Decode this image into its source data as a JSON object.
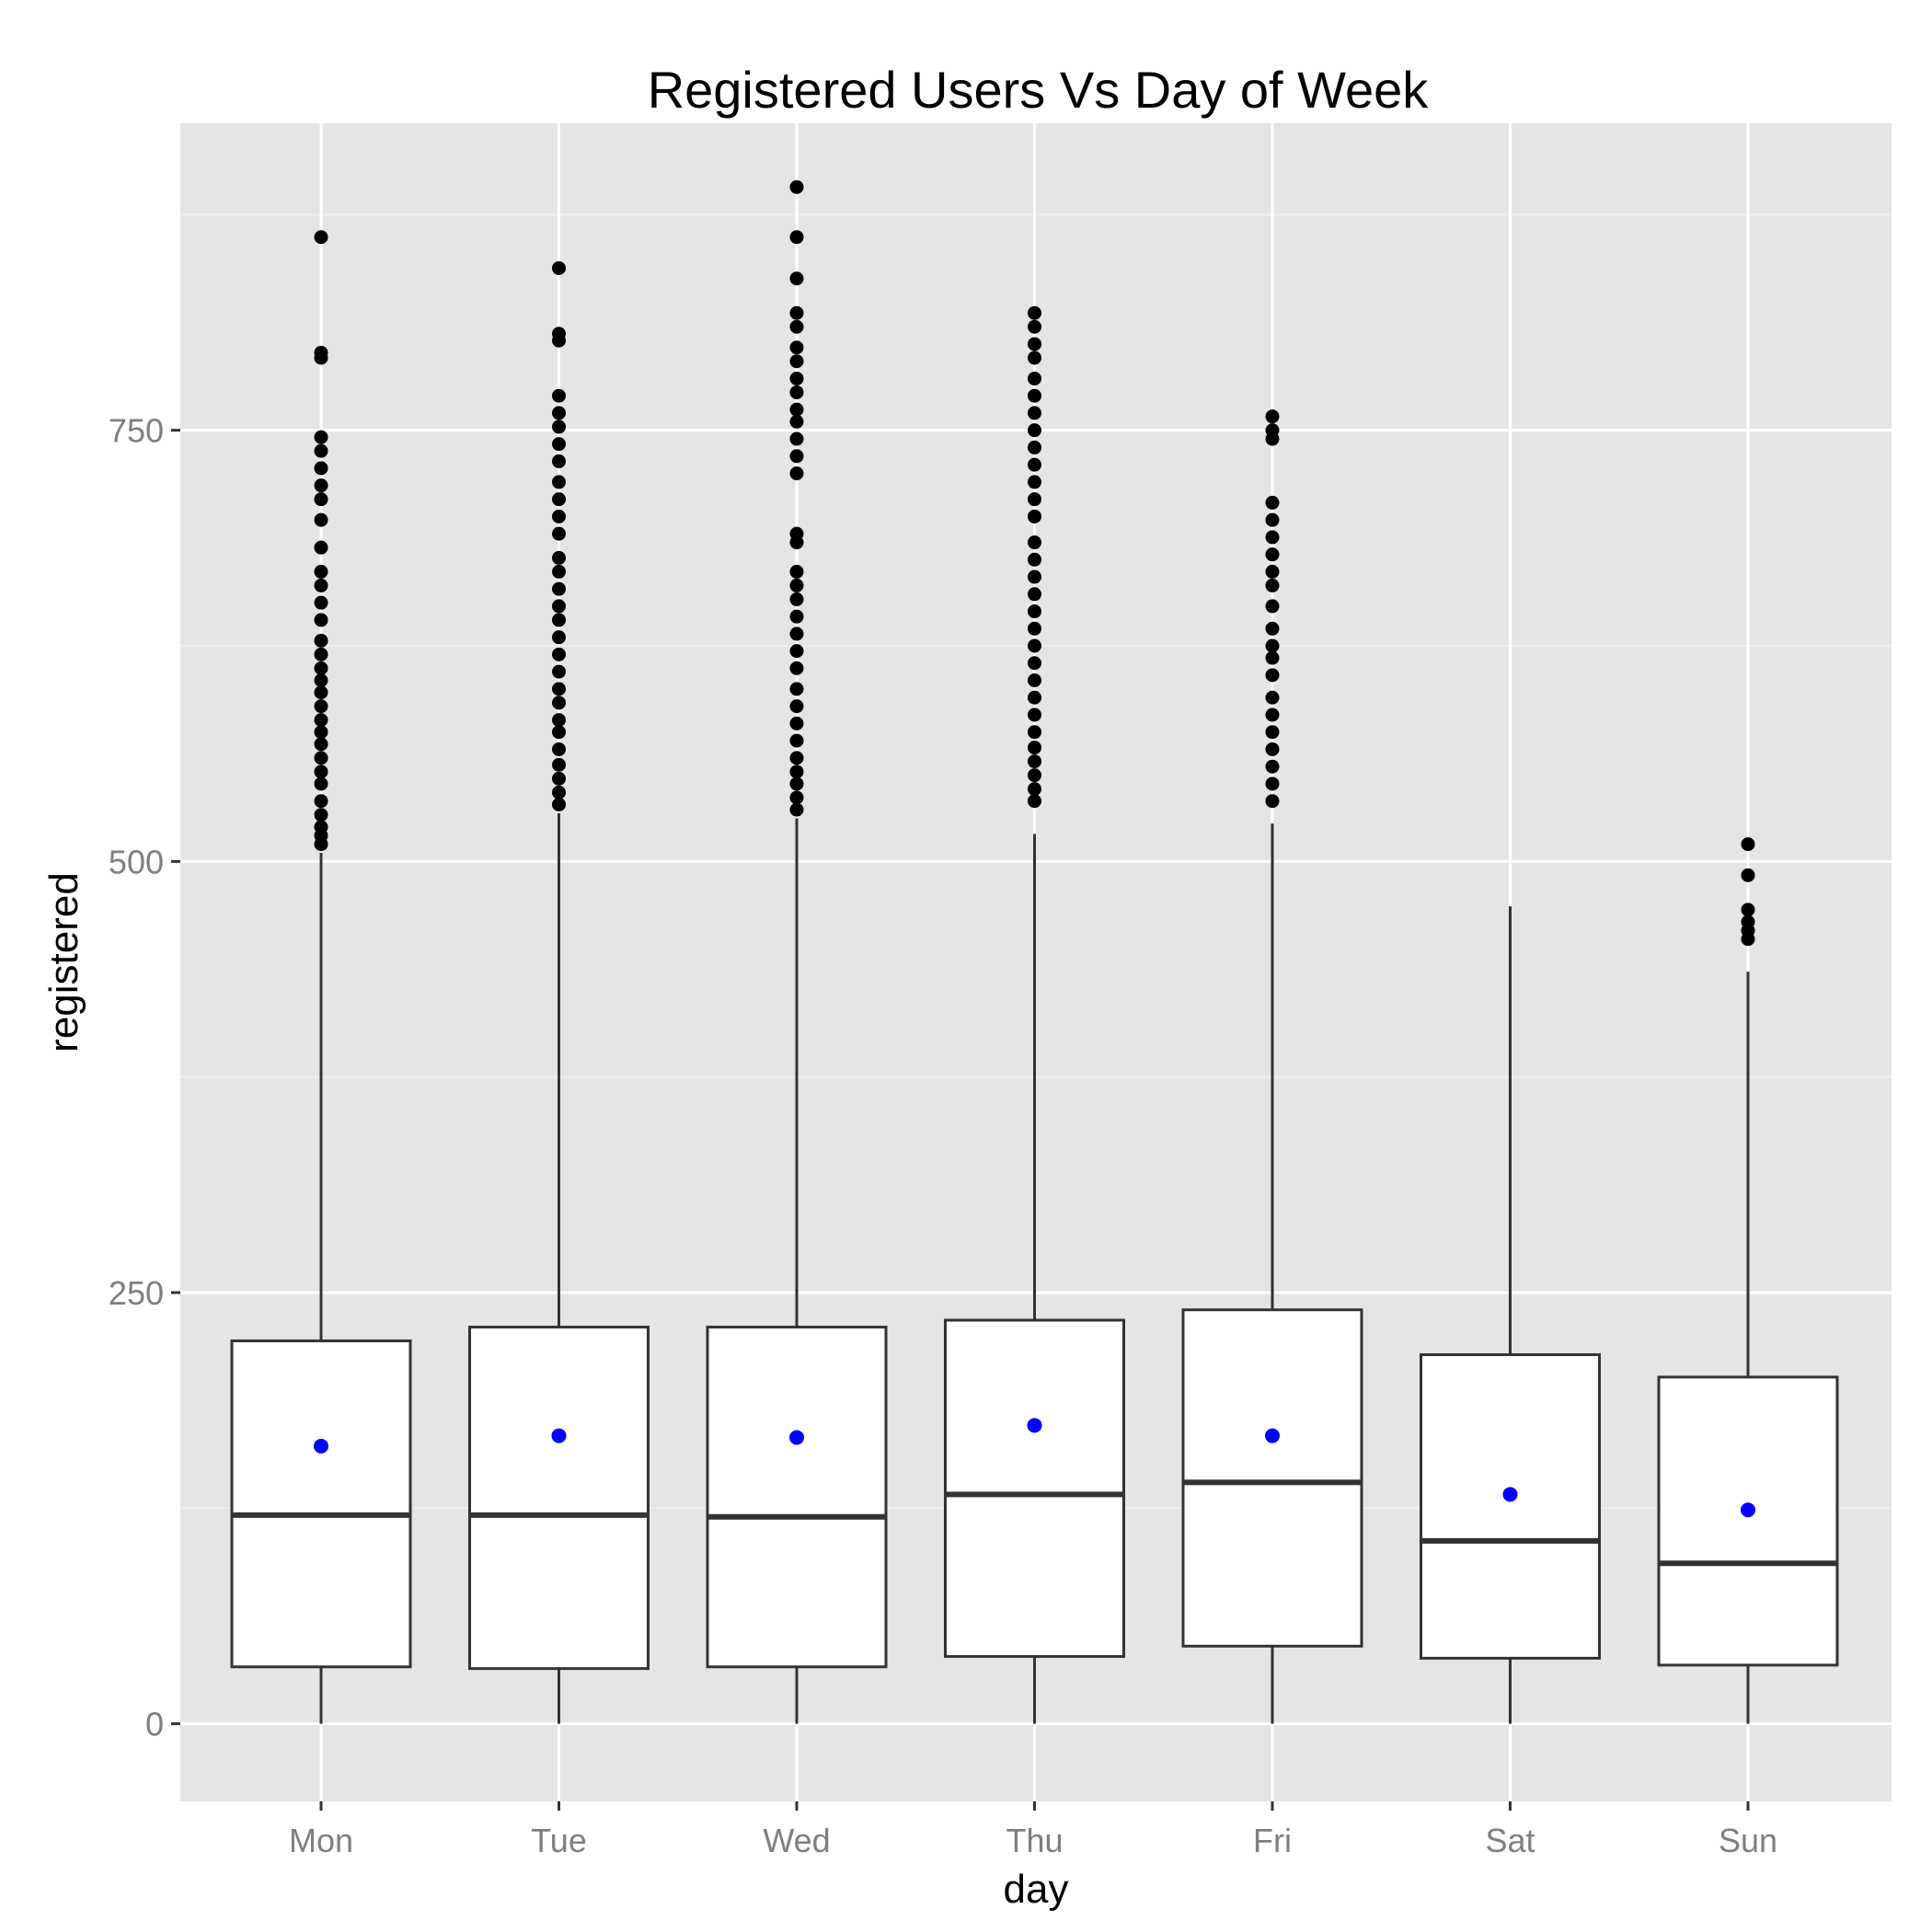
{
  "chart_data": {
    "type": "boxplot",
    "title": "Registered Users Vs Day of Week",
    "xlabel": "day",
    "ylabel": "registered",
    "categories": [
      "Mon",
      "Tue",
      "Wed",
      "Thu",
      "Fri",
      "Sat",
      "Sun"
    ],
    "ylim": [
      -45,
      928
    ],
    "yticks": [
      0,
      250,
      500,
      750
    ],
    "grid": true,
    "legend": "none",
    "colors": {
      "panel_background": "#e5e5e5",
      "grid_major": "#ffffff",
      "grid_minor": "#f2f2f2",
      "box_fill": "#ffffff",
      "box_stroke": "#333333",
      "outlier": "#000000",
      "mean_point": "#0000ff",
      "tick_label": "#7f7f7f"
    },
    "boxes": [
      {
        "day": "Mon",
        "whisker_low": 0,
        "q1": 33,
        "median": 121,
        "q3": 222,
        "whisker_high": 505,
        "mean": 161,
        "outliers": [
          510,
          515,
          520,
          527,
          535,
          545,
          552,
          560,
          568,
          575,
          582,
          590,
          598,
          605,
          612,
          620,
          628,
          640,
          650,
          660,
          668,
          682,
          698,
          710,
          718,
          728,
          738,
          746,
          792,
          795,
          862
        ]
      },
      {
        "day": "Tue",
        "whisker_low": 0,
        "q1": 32,
        "median": 121,
        "q3": 230,
        "whisker_high": 528,
        "mean": 167,
        "outliers": [
          533,
          540,
          548,
          556,
          565,
          575,
          582,
          592,
          600,
          610,
          620,
          630,
          640,
          648,
          658,
          668,
          676,
          690,
          700,
          710,
          720,
          732,
          742,
          752,
          760,
          770,
          802,
          806,
          844
        ]
      },
      {
        "day": "Wed",
        "whisker_low": 0,
        "q1": 33,
        "median": 120,
        "q3": 230,
        "whisker_high": 525,
        "mean": 166,
        "outliers": [
          530,
          537,
          545,
          552,
          560,
          570,
          580,
          590,
          600,
          612,
          622,
          632,
          642,
          652,
          660,
          668,
          685,
          690,
          725,
          735,
          745,
          755,
          762,
          772,
          780,
          790,
          798,
          810,
          818,
          838,
          862,
          891
        ]
      },
      {
        "day": "Thu",
        "whisker_low": 0,
        "q1": 39,
        "median": 133,
        "q3": 234,
        "whisker_high": 516,
        "mean": 173,
        "outliers": [
          535,
          542,
          550,
          558,
          566,
          575,
          585,
          595,
          605,
          615,
          625,
          635,
          645,
          655,
          665,
          675,
          685,
          700,
          710,
          720,
          730,
          740,
          750,
          760,
          770,
          780,
          792,
          800,
          810,
          818
        ]
      },
      {
        "day": "Fri",
        "whisker_low": 0,
        "q1": 45,
        "median": 140,
        "q3": 240,
        "whisker_high": 522,
        "mean": 167,
        "outliers": [
          535,
          545,
          555,
          565,
          575,
          585,
          595,
          608,
          618,
          625,
          635,
          648,
          660,
          668,
          678,
          688,
          698,
          708,
          745,
          750,
          758
        ]
      },
      {
        "day": "Sat",
        "whisker_low": 0,
        "q1": 38,
        "median": 106,
        "q3": 214,
        "whisker_high": 474,
        "mean": 133,
        "outliers": []
      },
      {
        "day": "Sun",
        "whisker_low": 0,
        "q1": 34,
        "median": 93,
        "q3": 201,
        "whisker_high": 436,
        "mean": 124,
        "outliers": [
          455,
          460,
          465,
          472,
          492,
          510
        ]
      }
    ]
  }
}
